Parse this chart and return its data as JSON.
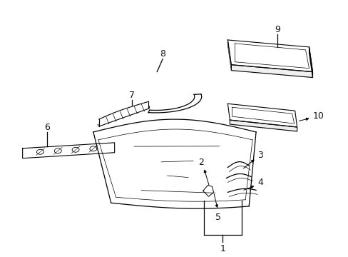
{
  "background_color": "#ffffff",
  "line_color": "#000000",
  "parts": [
    {
      "id": "1"
    },
    {
      "id": "2"
    },
    {
      "id": "3"
    },
    {
      "id": "4"
    },
    {
      "id": "5"
    },
    {
      "id": "6"
    },
    {
      "id": "7"
    },
    {
      "id": "8"
    },
    {
      "id": "9"
    },
    {
      "id": "10"
    }
  ],
  "label_fontsize": 9
}
